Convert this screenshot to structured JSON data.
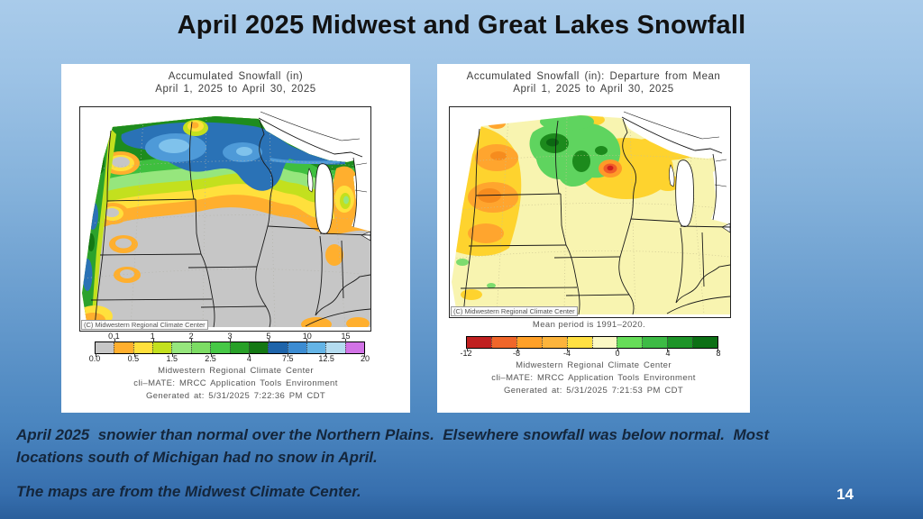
{
  "slide": {
    "title": "April 2025 Midwest and Great Lakes Snowfall",
    "page_number": "14",
    "caption_paragraph": "April 2025  snowier than normal over the Northern Plains.  Elsewhere snowfall was below normal.  Most locations south of Michigan had no snow in April.",
    "source_note": "The maps are from the Midwest Climate Center.",
    "colors": {
      "background_top": "#a9cbea",
      "background_bottom": "#2a5f9c",
      "title_color": "#121212",
      "caption_color": "#14263c"
    }
  },
  "left_map": {
    "title_line1": "Accumulated Snowfall (in)",
    "title_line2": "April 1, 2025 to April 30, 2025",
    "copyright": "(C) Midwestern Regional Climate Center",
    "footer_line1": "Midwestern Regional Climate Center",
    "footer_line2": "cli–MATE: MRCC Application Tools Environment",
    "footer_line3": "Generated at: 5/31/2025 7:22:36 PM CDT",
    "legend": {
      "units": "inches",
      "segment_colors": [
        "#c6c6c6",
        "#ffaf2e",
        "#ffe03c",
        "#c3e01e",
        "#96e67d",
        "#7cdc64",
        "#46c846",
        "#28a028",
        "#147814",
        "#1e64aa",
        "#3c8cd2",
        "#64b4e6",
        "#b4dcf0",
        "#d273e6"
      ],
      "top_labels": [
        {
          "text": "0.1",
          "boundary": 1
        },
        {
          "text": "1",
          "boundary": 3
        },
        {
          "text": "2",
          "boundary": 5
        },
        {
          "text": "3",
          "boundary": 7
        },
        {
          "text": "5",
          "boundary": 9
        },
        {
          "text": "10",
          "boundary": 11
        },
        {
          "text": "15",
          "boundary": 13
        }
      ],
      "bottom_labels": [
        {
          "text": "0.0",
          "boundary": 0
        },
        {
          "text": "0.5",
          "boundary": 2
        },
        {
          "text": "1.5",
          "boundary": 4
        },
        {
          "text": "2.5",
          "boundary": 6
        },
        {
          "text": "4",
          "boundary": 8
        },
        {
          "text": "7.5",
          "boundary": 10
        },
        {
          "text": "12.5",
          "boundary": 12
        },
        {
          "text": "20",
          "boundary": 14
        }
      ]
    }
  },
  "right_map": {
    "title_line1": "Accumulated Snowfall (in): Departure from Mean",
    "title_line2": "April 1, 2025 to April 30, 2025",
    "copyright": "(C) Midwestern Regional Climate Center",
    "mean_period_note": "Mean period is 1991–2020.",
    "footer_line1": "Midwestern Regional Climate Center",
    "footer_line2": "cli–MATE: MRCC Application Tools Environment",
    "footer_line3": "Generated at: 5/31/2025 7:21:53 PM CDT",
    "legend": {
      "units": "inches departure",
      "segment_colors": [
        "#c02020",
        "#f0662a",
        "#ffa028",
        "#fcb43c",
        "#ffe042",
        "#fbf8c4",
        "#66dd58",
        "#3dbb45",
        "#1d9428",
        "#0c7015"
      ],
      "bottom_labels": [
        {
          "text": "-12",
          "boundary": 0
        },
        {
          "text": "-8",
          "boundary": 2
        },
        {
          "text": "-4",
          "boundary": 4
        },
        {
          "text": "0",
          "boundary": 6
        },
        {
          "text": "4",
          "boundary": 8
        },
        {
          "text": "8",
          "boundary": 10
        }
      ]
    }
  }
}
